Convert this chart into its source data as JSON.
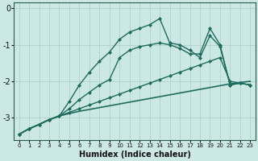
{
  "xlabel": "Humidex (Indice chaleur)",
  "ylabel": "",
  "bg_color": "#cce8e4",
  "grid_color": "#aaccca",
  "line_color": "#1e6b5e",
  "xlim": [
    -0.5,
    23.5
  ],
  "ylim": [
    -3.6,
    0.15
  ],
  "yticks": [
    0,
    -1,
    -2,
    -3
  ],
  "xticks": [
    0,
    1,
    2,
    3,
    4,
    5,
    6,
    7,
    8,
    9,
    10,
    11,
    12,
    13,
    14,
    15,
    16,
    17,
    18,
    19,
    20,
    21,
    22,
    23
  ],
  "series": [
    {
      "x": [
        0,
        1,
        2,
        3,
        4,
        5,
        6,
        7,
        8,
        9,
        10,
        11,
        12,
        13,
        14,
        15,
        16,
        17,
        18,
        19,
        20,
        21,
        22,
        23
      ],
      "y": [
        -3.45,
        -3.3,
        -3.18,
        -3.05,
        -2.95,
        -2.88,
        -2.82,
        -2.77,
        -2.72,
        -2.67,
        -2.62,
        -2.57,
        -2.52,
        -2.47,
        -2.42,
        -2.37,
        -2.32,
        -2.27,
        -2.22,
        -2.17,
        -2.12,
        -2.07,
        -2.03,
        -2.0
      ],
      "style": "-",
      "marker": null,
      "lw": 1.2
    },
    {
      "x": [
        0,
        1,
        2,
        3,
        4,
        5,
        6,
        7,
        8,
        9,
        10,
        11,
        12,
        13,
        14,
        15,
        16,
        17,
        18,
        19,
        20,
        21,
        22,
        23
      ],
      "y": [
        -3.45,
        -3.3,
        -3.18,
        -3.05,
        -2.95,
        -2.85,
        -2.75,
        -2.65,
        -2.55,
        -2.45,
        -2.35,
        -2.25,
        -2.15,
        -2.05,
        -1.95,
        -1.85,
        -1.75,
        -1.65,
        -1.55,
        -1.45,
        -1.35,
        -2.0,
        -2.05,
        -2.1
      ],
      "style": "-",
      "marker": "D",
      "lw": 1.0
    },
    {
      "x": [
        0,
        1,
        2,
        3,
        4,
        5,
        6,
        7,
        8,
        9,
        10,
        11,
        12,
        13,
        14,
        15,
        16,
        17,
        18,
        19,
        20,
        21,
        22,
        23
      ],
      "y": [
        -3.45,
        -3.3,
        -3.18,
        -3.05,
        -2.95,
        -2.55,
        -2.1,
        -1.75,
        -1.45,
        -1.2,
        -0.85,
        -0.65,
        -0.55,
        -0.45,
        -0.28,
        -0.95,
        -1.0,
        -1.15,
        -1.35,
        -0.75,
        -1.05,
        -2.1,
        -2.05,
        -2.1
      ],
      "style": "-",
      "marker": "D",
      "lw": 1.0
    },
    {
      "x": [
        0,
        1,
        2,
        3,
        4,
        5,
        6,
        7,
        8,
        9,
        10,
        11,
        12,
        13,
        14,
        15,
        16,
        17,
        18,
        19,
        20,
        21,
        22,
        23
      ],
      "y": [
        -3.45,
        -3.3,
        -3.18,
        -3.05,
        -2.95,
        -2.75,
        -2.5,
        -2.3,
        -2.1,
        -1.95,
        -1.35,
        -1.15,
        -1.05,
        -1.0,
        -0.95,
        -1.0,
        -1.1,
        -1.25,
        -1.25,
        -0.55,
        -1.0,
        -2.1,
        -2.05,
        -2.1
      ],
      "style": "-",
      "marker": "D",
      "lw": 1.0
    }
  ]
}
